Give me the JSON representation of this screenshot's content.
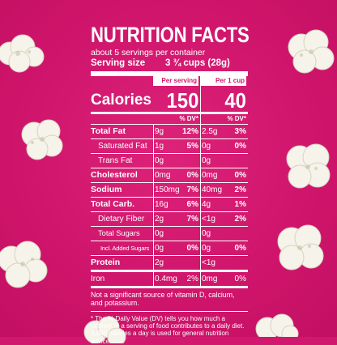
{
  "colors": {
    "background": "#d2186e",
    "text": "#ffffff",
    "popcorn": "#f6f3ea"
  },
  "label": {
    "title": "NUTRITION FACTS",
    "servings_per_container": "about 5 servings per container",
    "serving_size_label": "Serving size",
    "serving_size_value": "3 ¾ cups (28g)",
    "calories_label": "Calories",
    "col1_header": "Per serving",
    "col2_header": "Per 1 cup",
    "calories_per_serving": "150",
    "calories_per_cup": "40",
    "dv_header": "% DV*",
    "dv_header_2": "% DV*",
    "nutrients": [
      {
        "name": "Total Fat",
        "amt1": "9g",
        "dv1": "12%",
        "amt2": "2.5g",
        "dv2": "3%"
      },
      {
        "name": "Saturated Fat",
        "amt1": "1g",
        "dv1": "5%",
        "amt2": "0g",
        "dv2": "0%"
      },
      {
        "name": "Trans Fat",
        "amt1": "0g",
        "dv1": "",
        "amt2": "0g",
        "dv2": ""
      },
      {
        "name": "Cholesterol",
        "amt1": "0mg",
        "dv1": "0%",
        "amt2": "0mg",
        "dv2": "0%"
      },
      {
        "name": "Sodium",
        "amt1": "150mg",
        "dv1": "7%",
        "amt2": "40mg",
        "dv2": "2%"
      },
      {
        "name": "Total Carb.",
        "amt1": "16g",
        "dv1": "6%",
        "amt2": "4g",
        "dv2": "1%"
      },
      {
        "name": "Dietary Fiber",
        "amt1": "2g",
        "dv1": "7%",
        "amt2": "<1g",
        "dv2": "2%"
      },
      {
        "name": "Total Sugars",
        "amt1": "0g",
        "dv1": "",
        "amt2": "0g",
        "dv2": ""
      },
      {
        "name": "Incl. Added Sugars",
        "amt1": "0g",
        "dv1": "0%",
        "amt2": "0g",
        "dv2": "0%"
      },
      {
        "name": "Protein",
        "amt1": "2g",
        "dv1": "",
        "amt2": "<1g",
        "dv2": ""
      },
      {
        "name": "Iron",
        "amt1": "0.4mg",
        "dv1": "2%",
        "amt2": "0mg",
        "dv2": "0%"
      }
    ],
    "note_vitamins": "Not a significant source of vitamin D, calcium, and potassium.",
    "note_dv": "* The % Daily Value (DV) tells you how much a nutrient in a serving of food contributes to a daily diet. 2,000 calories a day is used for general nutrition advice."
  },
  "decorations": [
    "popcorn-kernel-icon",
    "popcorn-kernel-icon",
    "popcorn-kernel-icon",
    "popcorn-kernel-icon",
    "popcorn-kernel-icon",
    "popcorn-kernel-icon",
    "popcorn-kernel-icon",
    "popcorn-kernel-icon"
  ]
}
